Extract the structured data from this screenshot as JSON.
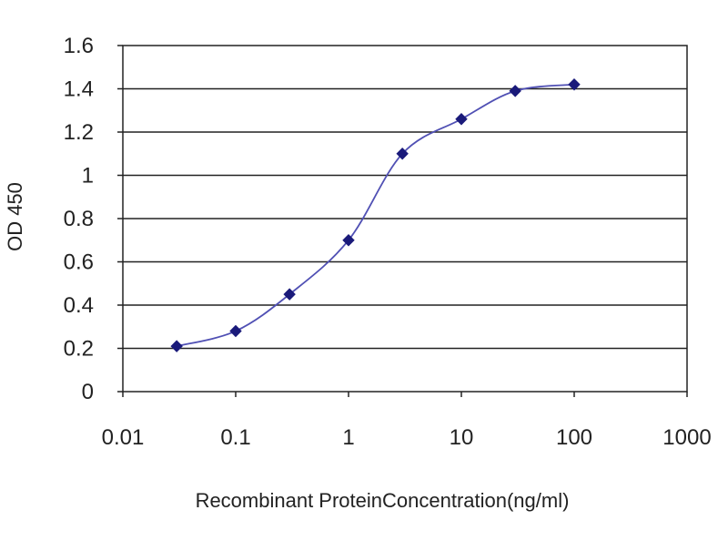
{
  "chart_data": {
    "type": "line",
    "title": "",
    "xlabel": "Recombinant ProteinConcentration(ng/ml)",
    "ylabel": "OD 450",
    "x_scale": "log",
    "xlim": [
      0.01,
      1000
    ],
    "ylim": [
      0,
      1.6
    ],
    "x_ticks": [
      0.01,
      0.1,
      1,
      10,
      100,
      1000
    ],
    "x_tick_labels": [
      "0.01",
      "0.1",
      "1",
      "10",
      "100",
      "1000"
    ],
    "y_ticks": [
      0,
      0.2,
      0.4,
      0.6,
      0.8,
      1,
      1.2,
      1.4,
      1.6
    ],
    "y_tick_labels": [
      "0",
      "0.2",
      "0.4",
      "0.6",
      "0.8",
      "1",
      "1.2",
      "1.4",
      "1.6"
    ],
    "grid": "horizontal",
    "legend": "none",
    "series": [
      {
        "x": [
          0.03,
          0.1,
          0.3,
          1,
          3,
          10,
          30,
          100
        ],
        "y": [
          0.21,
          0.28,
          0.45,
          0.7,
          1.1,
          1.26,
          1.39,
          1.42
        ],
        "color": "#1f1f8c",
        "marker": "diamond"
      }
    ],
    "colors": {
      "line": "#5050b4",
      "marker": "#1a1a7a",
      "grid": "#222222",
      "frame": "#222222"
    }
  }
}
